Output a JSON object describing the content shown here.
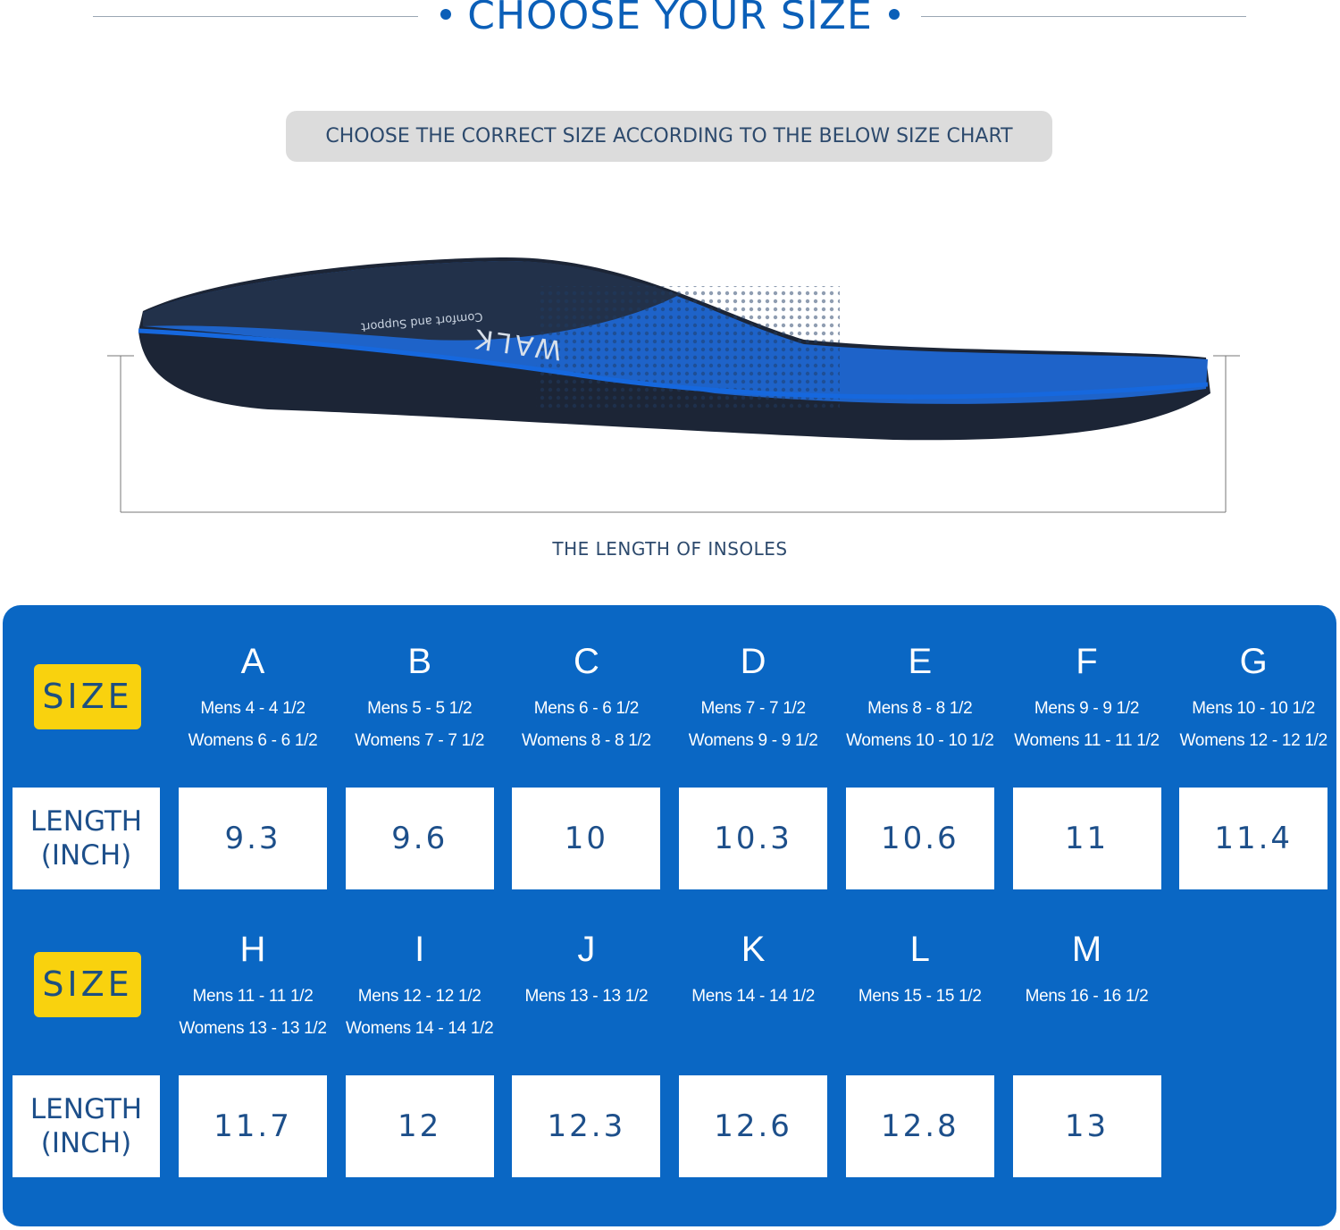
{
  "header": {
    "title": "CHOOSE YOUR SIZE",
    "subtitle": "CHOOSE THE CORRECT SIZE ACCORDING TO THE BELOW SIZE CHART"
  },
  "insole": {
    "imprint": "Comfort and Support",
    "brand_partial": "WALK"
  },
  "measure_label": "THE LENGTH OF INSOLES",
  "table": {
    "size_label": "SIZE",
    "length_label_line1": "LENGTH",
    "length_label_line2": "(INCH)",
    "colors": {
      "panel": "#0a67c4",
      "badge": "#f9d20e",
      "text_dark": "#1d4f8a"
    },
    "rows": [
      {
        "sizes": [
          {
            "letter": "A",
            "mens": "Mens 4 - 4 1/2",
            "womens": "Womens 6 - 6 1/2",
            "length": "9.3"
          },
          {
            "letter": "B",
            "mens": "Mens 5 - 5 1/2",
            "womens": "Womens 7 - 7 1/2",
            "length": "9.6"
          },
          {
            "letter": "C",
            "mens": "Mens 6 - 6 1/2",
            "womens": "Womens 8 - 8 1/2",
            "length": "10"
          },
          {
            "letter": "D",
            "mens": "Mens 7 - 7 1/2",
            "womens": "Womens 9 - 9 1/2",
            "length": "10.3"
          },
          {
            "letter": "E",
            "mens": "Mens 8 - 8 1/2",
            "womens": "Womens 10 - 10 1/2",
            "length": "10.6"
          },
          {
            "letter": "F",
            "mens": "Mens 9 - 9 1/2",
            "womens": "Womens 11 - 11 1/2",
            "length": "11"
          },
          {
            "letter": "G",
            "mens": "Mens 10 - 10 1/2",
            "womens": "Womens 12 - 12 1/2",
            "length": "11.4"
          }
        ]
      },
      {
        "sizes": [
          {
            "letter": "H",
            "mens": "Mens 11 - 11 1/2",
            "womens": "Womens 13 - 13 1/2",
            "length": "11.7"
          },
          {
            "letter": "I",
            "mens": "Mens 12 - 12 1/2",
            "womens": "Womens 14 - 14 1/2",
            "length": "12"
          },
          {
            "letter": "J",
            "mens": "Mens 13 - 13 1/2",
            "womens": "",
            "length": "12.3"
          },
          {
            "letter": "K",
            "mens": "Mens 14 - 14 1/2",
            "womens": "",
            "length": "12.6"
          },
          {
            "letter": "L",
            "mens": "Mens 15 - 15 1/2",
            "womens": "",
            "length": "12.8"
          },
          {
            "letter": "M",
            "mens": "Mens 16 - 16 1/2",
            "womens": "",
            "length": "13"
          }
        ]
      }
    ]
  }
}
